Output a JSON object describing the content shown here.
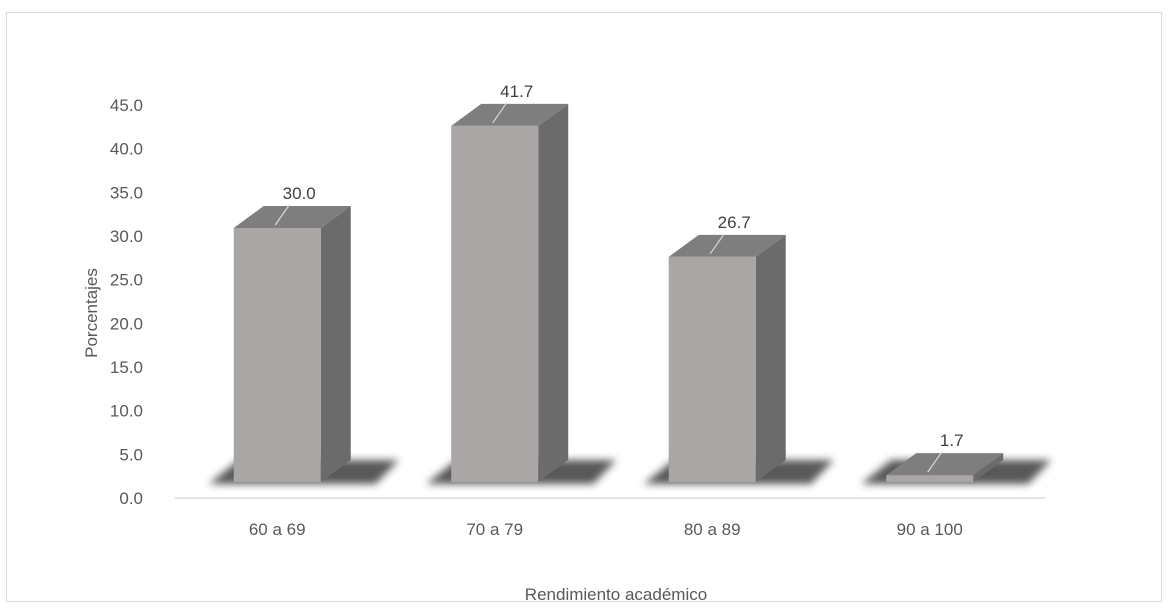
{
  "chart_data": {
    "type": "bar",
    "categories": [
      "60 a 69",
      "70 a 79",
      "80 a 89",
      "90 a 100"
    ],
    "values": [
      30.0,
      41.7,
      26.7,
      1.7
    ],
    "data_labels": [
      "30.0",
      "41.7",
      "26.7",
      "1.7"
    ],
    "xlabel": "Rendimiento académico",
    "ylabel": "Porcentajes",
    "ylim": [
      0,
      45
    ],
    "yticks": [
      "0.0",
      "5.0",
      "10.0",
      "15.0",
      "20.0",
      "25.0",
      "30.0",
      "35.0",
      "40.0",
      "45.0"
    ],
    "grid": false,
    "legend": "none",
    "style": "3d-column",
    "colors": {
      "bar_front": "#aaa6a5",
      "bar_side": "#6b6b6b",
      "bar_top": "#7f7e7e",
      "shadow": "#3a3a3a",
      "axis_line": "#d9d9d9"
    }
  }
}
